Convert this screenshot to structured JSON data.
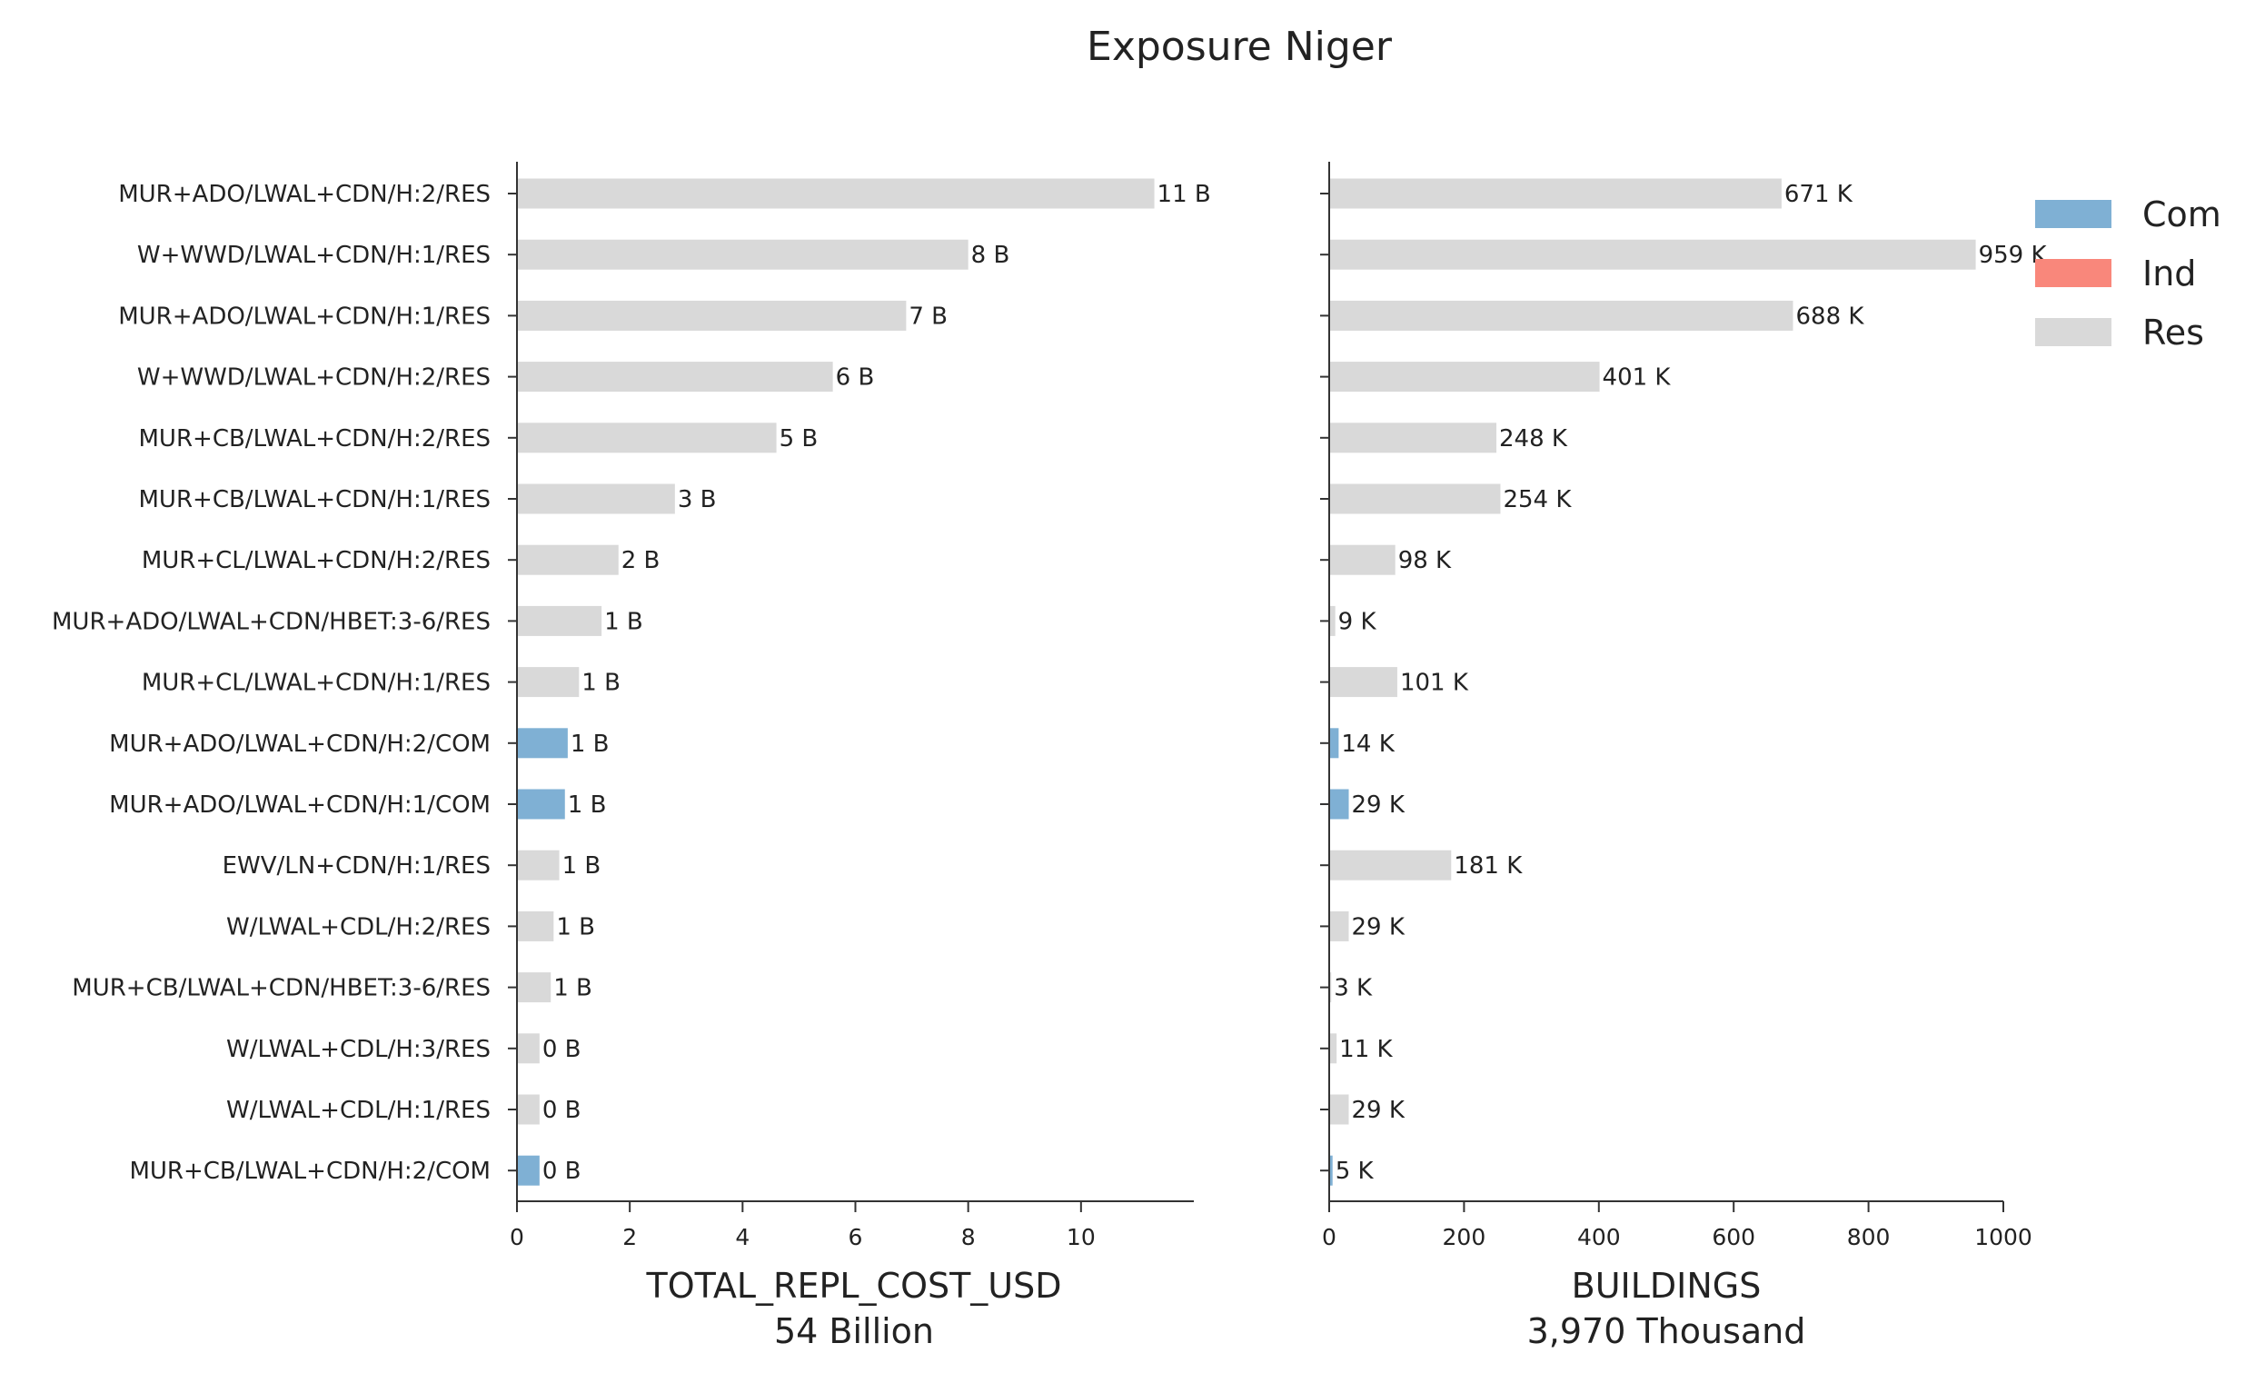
{
  "chart_data": {
    "title": "Exposure Niger",
    "type": "bar",
    "orientation": "horizontal",
    "categories": [
      "MUR+ADO/LWAL+CDN/H:2/RES",
      "W+WWD/LWAL+CDN/H:1/RES",
      "MUR+ADO/LWAL+CDN/H:1/RES",
      "W+WWD/LWAL+CDN/H:2/RES",
      "MUR+CB/LWAL+CDN/H:2/RES",
      "MUR+CB/LWAL+CDN/H:1/RES",
      "MUR+CL/LWAL+CDN/H:2/RES",
      "MUR+ADO/LWAL+CDN/HBET:3-6/RES",
      "MUR+CL/LWAL+CDN/H:1/RES",
      "MUR+ADO/LWAL+CDN/H:2/COM",
      "MUR+ADO/LWAL+CDN/H:1/COM",
      "EWV/LN+CDN/H:1/RES",
      "W/LWAL+CDL/H:2/RES",
      "MUR+CB/LWAL+CDN/HBET:3-6/RES",
      "W/LWAL+CDL/H:3/RES",
      "W/LWAL+CDL/H:1/RES",
      "MUR+CB/LWAL+CDN/H:2/COM"
    ],
    "occupancy": [
      "Res",
      "Res",
      "Res",
      "Res",
      "Res",
      "Res",
      "Res",
      "Res",
      "Res",
      "Com",
      "Com",
      "Res",
      "Res",
      "Res",
      "Res",
      "Res",
      "Com"
    ],
    "legend": {
      "position": "top-right",
      "entries": [
        {
          "name": "Com",
          "color": "#7fb0d4"
        },
        {
          "name": "Ind",
          "color": "#f9877b"
        },
        {
          "name": "Res",
          "color": "#d9d9d9"
        }
      ]
    },
    "panels": [
      {
        "xlabel": "TOTAL_REPL_COST_USD",
        "subtitle": "54 Billion",
        "xlim": [
          0,
          12
        ],
        "xticks": [
          0,
          2,
          4,
          6,
          8,
          10
        ],
        "values": [
          11.3,
          8.0,
          6.9,
          5.6,
          4.6,
          2.8,
          1.8,
          1.5,
          1.1,
          0.9,
          0.85,
          0.75,
          0.65,
          0.6,
          0.4,
          0.4,
          0.4
        ],
        "labels": [
          "11 B",
          "8 B",
          "7 B",
          "6 B",
          "5 B",
          "3 B",
          "2 B",
          "1 B",
          "1 B",
          "1 B",
          "1 B",
          "1 B",
          "1 B",
          "1 B",
          "0 B",
          "0 B",
          "0 B"
        ]
      },
      {
        "xlabel": "BUILDINGS",
        "subtitle": "3,970 Thousand",
        "xlim": [
          0,
          1000
        ],
        "xticks": [
          0,
          200,
          400,
          600,
          800,
          1000
        ],
        "values": [
          671,
          959,
          688,
          401,
          248,
          254,
          98,
          9,
          101,
          14,
          29,
          181,
          29,
          3,
          11,
          29,
          5
        ],
        "labels": [
          "671 K",
          "959 K",
          "688 K",
          "401 K",
          "248 K",
          "254 K",
          "98 K",
          "9 K",
          "101 K",
          "14 K",
          "29 K",
          "181 K",
          "29 K",
          "3 K",
          "11 K",
          "29 K",
          "5 K"
        ]
      }
    ]
  }
}
